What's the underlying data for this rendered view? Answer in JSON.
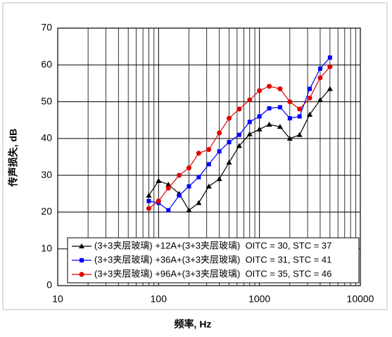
{
  "chart_data": {
    "type": "line",
    "x_log_scale": true,
    "grid": true,
    "x_minor_grid": true,
    "xlabel": "频率, Hz",
    "ylabel": "传声损失, dB",
    "xlim": [
      10,
      10000
    ],
    "xticks": [
      10,
      100,
      1000,
      10000
    ],
    "ylim": [
      0,
      70
    ],
    "yticks": [
      0,
      10,
      20,
      30,
      40,
      50,
      60,
      70
    ],
    "legend_position": "bottom",
    "x": [
      80,
      100,
      125,
      160,
      200,
      250,
      315,
      400,
      500,
      630,
      800,
      1000,
      1250,
      1600,
      2000,
      2500,
      3150,
      4000,
      5000
    ],
    "series": [
      {
        "name": "(3+3夹层玻璃) +12A+(3+3夹层玻璃)  OITC = 30, STC = 37",
        "color": "#000000",
        "marker": "triangle",
        "values": [
          24.5,
          28.5,
          27.5,
          25,
          20.5,
          22.5,
          27,
          29,
          33.5,
          38,
          41.2,
          42.5,
          43.8,
          43.2,
          40,
          41,
          46.5,
          50.5,
          53.5
        ]
      },
      {
        "name": "(3+3夹层玻璃) +36A+(3+3夹层玻璃)  OITC = 31, STC = 41",
        "color": "#0000ff",
        "marker": "square",
        "values": [
          23,
          22.5,
          20.5,
          24.5,
          27,
          29.5,
          33,
          36.5,
          39,
          41,
          44.5,
          46,
          48.2,
          48.5,
          45.5,
          46,
          53.5,
          59,
          62
        ]
      },
      {
        "name": "(3+3夹层玻璃) +96A+(3+3夹层玻璃)  OITC = 35, STC = 46",
        "color": "#e00000",
        "marker": "circle",
        "values": [
          21,
          23,
          26.5,
          30,
          32,
          36,
          37,
          41.5,
          45.5,
          48,
          50.5,
          53,
          54.2,
          53.5,
          50,
          48,
          51,
          56.5,
          59.5
        ]
      }
    ]
  }
}
